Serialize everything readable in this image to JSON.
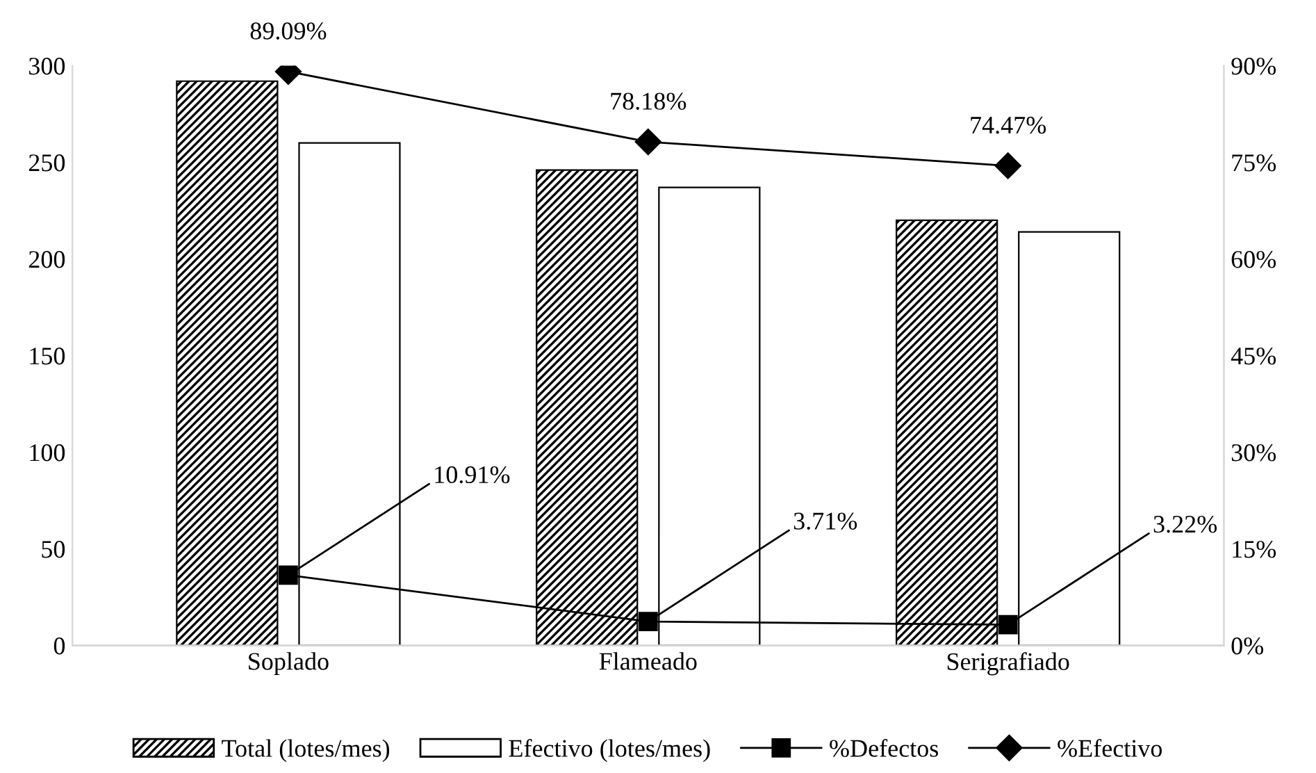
{
  "chart_data": {
    "type": "bar",
    "categories": [
      "Soplado",
      "Flameado",
      "Serigrafiado"
    ],
    "series": [
      {
        "name": "Total (lotes/mes)",
        "color": "#000000",
        "values": [
          292,
          246,
          220
        ]
      },
      {
        "name": "Efectivo (lotes/mes)",
        "color": "#ffffff",
        "values": [
          260,
          237,
          214
        ]
      },
      {
        "name": "%Defectos",
        "type": "line",
        "axis": "y2",
        "marker": "square",
        "color": "#000000",
        "values": [
          10.91,
          3.71,
          3.22
        ],
        "value_labels": [
          "10.91%",
          "3.71%",
          "3.22%"
        ]
      },
      {
        "name": "%Efectivo",
        "type": "line",
        "axis": "y2",
        "marker": "diamond",
        "color": "#000000",
        "values": [
          89.09,
          78.18,
          74.47
        ],
        "value_labels": [
          "89.09%",
          "78.18%",
          "74.47%"
        ]
      }
    ],
    "ylim": [
      0,
      300
    ],
    "yticks": [
      0,
      50,
      100,
      150,
      200,
      250,
      300
    ],
    "y2lim": [
      0,
      90
    ],
    "y2ticks": [
      {
        "value": 0,
        "label": "0%"
      },
      {
        "value": 15,
        "label": "15%"
      },
      {
        "value": 30,
        "label": "30%"
      },
      {
        "value": 45,
        "label": "45%"
      },
      {
        "value": 60,
        "label": "60%"
      },
      {
        "value": 75,
        "label": "75%"
      },
      {
        "value": 90,
        "label": "90%"
      }
    ],
    "grid": false,
    "legend": "bottom"
  }
}
